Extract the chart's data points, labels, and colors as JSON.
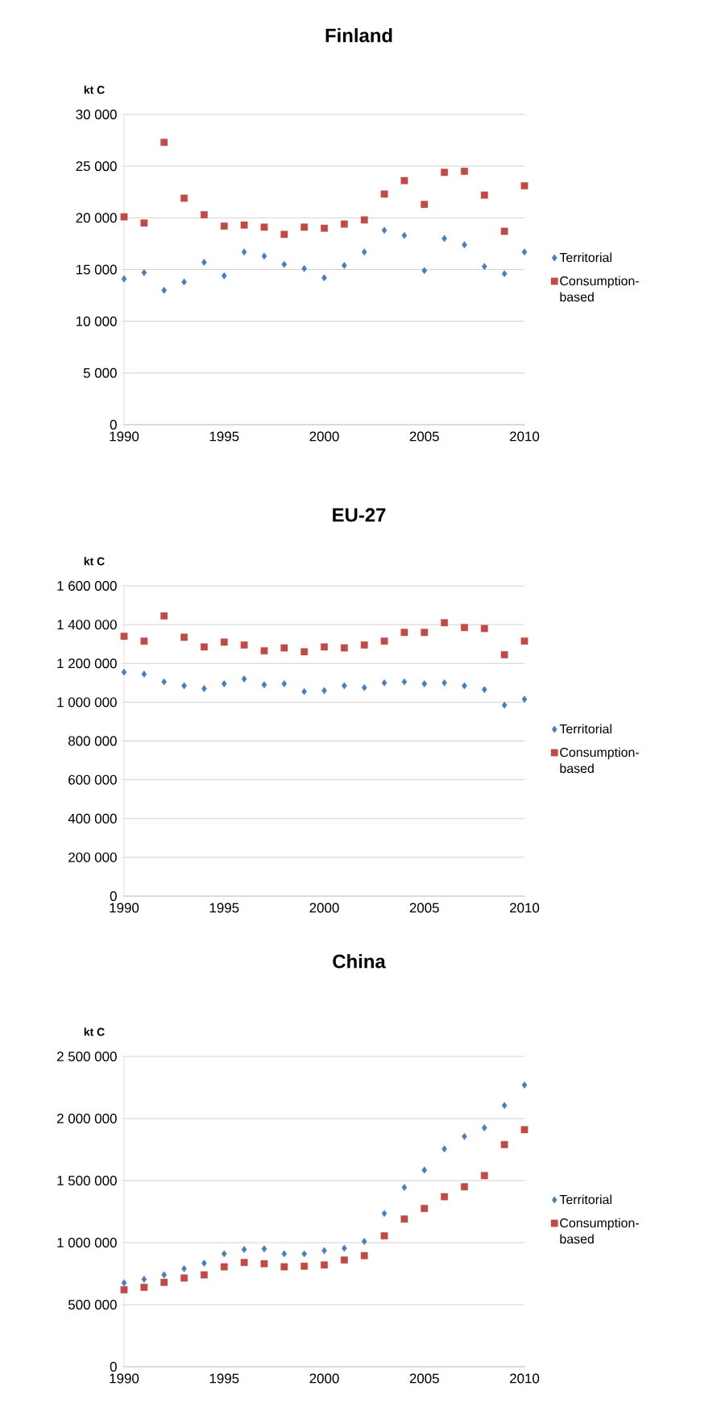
{
  "chart_data": [
    {
      "type": "scatter",
      "title": "Finland",
      "ylabel": "kt C",
      "grid": "y",
      "legend": "right",
      "x": [
        1990,
        1991,
        1992,
        1993,
        1994,
        1995,
        1996,
        1997,
        1998,
        1999,
        2000,
        2001,
        2002,
        2003,
        2004,
        2005,
        2006,
        2007,
        2008,
        2009,
        2010
      ],
      "xlim": [
        1990,
        2010
      ],
      "xticks": [
        1990,
        1995,
        2000,
        2005,
        2010
      ],
      "ylim": [
        0,
        30000
      ],
      "yticks": [
        0,
        {
          "value": 5000,
          "label": "5 000"
        },
        {
          "value": 10000,
          "label": "10 000"
        },
        {
          "value": 15000,
          "label": "15 000"
        },
        {
          "value": 20000,
          "label": "20 000"
        },
        {
          "value": 25000,
          "label": "25 000"
        },
        {
          "value": 30000,
          "label": "30 000"
        }
      ],
      "series": [
        {
          "name": "Territorial",
          "color": "#4a7ebb",
          "marker": "diamond",
          "values": [
            14100,
            14700,
            13000,
            13800,
            15700,
            14400,
            16700,
            16300,
            15500,
            15100,
            14200,
            15400,
            16700,
            18800,
            18300,
            14900,
            18000,
            17400,
            15300,
            14600,
            16700
          ]
        },
        {
          "name": "Consumption-based",
          "color": "#be4b48",
          "marker": "square",
          "values": [
            20100,
            19500,
            27300,
            21900,
            20300,
            19200,
            19300,
            19100,
            18400,
            19100,
            19000,
            19400,
            19800,
            22300,
            23600,
            21300,
            24400,
            24500,
            22200,
            18700,
            23100
          ]
        }
      ]
    },
    {
      "type": "scatter",
      "title": "EU-27",
      "ylabel": "kt C",
      "grid": "y",
      "legend": "right",
      "x": [
        1990,
        1991,
        1992,
        1993,
        1994,
        1995,
        1996,
        1997,
        1998,
        1999,
        2000,
        2001,
        2002,
        2003,
        2004,
        2005,
        2006,
        2007,
        2008,
        2009,
        2010
      ],
      "xlim": [
        1990,
        2010
      ],
      "xticks": [
        1990,
        1995,
        2000,
        2005,
        2010
      ],
      "ylim": [
        0,
        1600000
      ],
      "yticks": [
        0,
        {
          "value": 200000,
          "label": "200 000"
        },
        {
          "value": 400000,
          "label": "400 000"
        },
        {
          "value": 600000,
          "label": "600 000"
        },
        {
          "value": 800000,
          "label": "800 000"
        },
        {
          "value": 1000000,
          "label": "1 000 000"
        },
        {
          "value": 1200000,
          "label": "1 200 000"
        },
        {
          "value": 1400000,
          "label": "1 400 000"
        },
        {
          "value": 1600000,
          "label": "1 600 000"
        }
      ],
      "series": [
        {
          "name": "Territorial",
          "color": "#4a7ebb",
          "marker": "diamond",
          "values": [
            1155000,
            1145000,
            1105000,
            1085000,
            1070000,
            1095000,
            1120000,
            1090000,
            1095000,
            1055000,
            1060000,
            1085000,
            1075000,
            1100000,
            1105000,
            1095000,
            1100000,
            1085000,
            1065000,
            985000,
            1015000
          ]
        },
        {
          "name": "Consumption-based",
          "color": "#be4b48",
          "marker": "square",
          "values": [
            1340000,
            1315000,
            1445000,
            1335000,
            1285000,
            1310000,
            1295000,
            1265000,
            1280000,
            1260000,
            1285000,
            1280000,
            1295000,
            1315000,
            1360000,
            1360000,
            1410000,
            1385000,
            1380000,
            1245000,
            1315000
          ]
        }
      ]
    },
    {
      "type": "scatter",
      "title": "China",
      "ylabel": "kt C",
      "grid": "y",
      "legend": "right",
      "x": [
        1990,
        1991,
        1992,
        1993,
        1994,
        1995,
        1996,
        1997,
        1998,
        1999,
        2000,
        2001,
        2002,
        2003,
        2004,
        2005,
        2006,
        2007,
        2008,
        2009,
        2010
      ],
      "xlim": [
        1990,
        2010
      ],
      "xticks": [
        1990,
        1995,
        2000,
        2005,
        2010
      ],
      "ylim": [
        0,
        2500000
      ],
      "yticks": [
        0,
        {
          "value": 500000,
          "label": "500 000"
        },
        {
          "value": 1000000,
          "label": "1 000 000"
        },
        {
          "value": 1500000,
          "label": "1 500 000"
        },
        {
          "value": 2000000,
          "label": "2 000 000"
        },
        {
          "value": 2500000,
          "label": "2 500 000"
        }
      ],
      "series": [
        {
          "name": "Territorial",
          "color": "#4a7ebb",
          "marker": "diamond",
          "values": [
            675000,
            705000,
            740000,
            790000,
            835000,
            910000,
            945000,
            950000,
            910000,
            910000,
            935000,
            955000,
            1010000,
            1235000,
            1445000,
            1585000,
            1755000,
            1855000,
            1925000,
            2105000,
            2270000
          ]
        },
        {
          "name": "Consumption-based",
          "color": "#be4b48",
          "marker": "square",
          "values": [
            620000,
            640000,
            680000,
            715000,
            740000,
            805000,
            840000,
            830000,
            805000,
            810000,
            820000,
            860000,
            895000,
            1055000,
            1190000,
            1275000,
            1370000,
            1450000,
            1540000,
            1790000,
            1910000
          ]
        }
      ]
    }
  ]
}
